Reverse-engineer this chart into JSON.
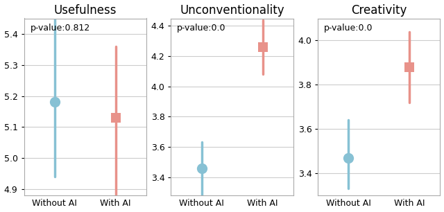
{
  "panels": [
    {
      "title": "Usefulness",
      "pvalue": "p-value:0.812",
      "ylim": [
        4.88,
        5.45
      ],
      "yticks": [
        4.9,
        5.0,
        5.1,
        5.2,
        5.3,
        5.4
      ],
      "without_ai": {
        "mean": 5.18,
        "ci_low": 4.94,
        "ci_high": 5.45,
        "color": "#87C1D4",
        "marker": "o"
      },
      "with_ai": {
        "mean": 5.13,
        "ci_low": 4.88,
        "ci_high": 5.36,
        "color": "#E8928A",
        "marker": "s"
      }
    },
    {
      "title": "Unconventionality",
      "pvalue": "p-value:0.0",
      "ylim": [
        3.28,
        4.45
      ],
      "yticks": [
        3.4,
        3.6,
        3.8,
        4.0,
        4.2,
        4.4
      ],
      "without_ai": {
        "mean": 3.46,
        "ci_low": 3.28,
        "ci_high": 3.63,
        "color": "#87C1D4",
        "marker": "o"
      },
      "with_ai": {
        "mean": 4.26,
        "ci_low": 4.08,
        "ci_high": 4.44,
        "color": "#E8928A",
        "marker": "s"
      }
    },
    {
      "title": "Creativity",
      "pvalue": "p-value:0.0",
      "ylim": [
        3.3,
        4.1
      ],
      "yticks": [
        3.4,
        3.6,
        3.8,
        4.0
      ],
      "without_ai": {
        "mean": 3.47,
        "ci_low": 3.33,
        "ci_high": 3.64,
        "color": "#87C1D4",
        "marker": "o"
      },
      "with_ai": {
        "mean": 3.88,
        "ci_low": 3.72,
        "ci_high": 4.04,
        "color": "#E8928A",
        "marker": "s"
      }
    }
  ],
  "xlabel_without": "Without AI",
  "xlabel_with": "With AI",
  "background_color": "#ffffff",
  "grid_color": "#cccccc",
  "title_fontsize": 12,
  "label_fontsize": 9,
  "tick_fontsize": 9,
  "pvalue_fontsize": 9,
  "figsize": [
    6.4,
    3.06
  ],
  "dpi": 100
}
